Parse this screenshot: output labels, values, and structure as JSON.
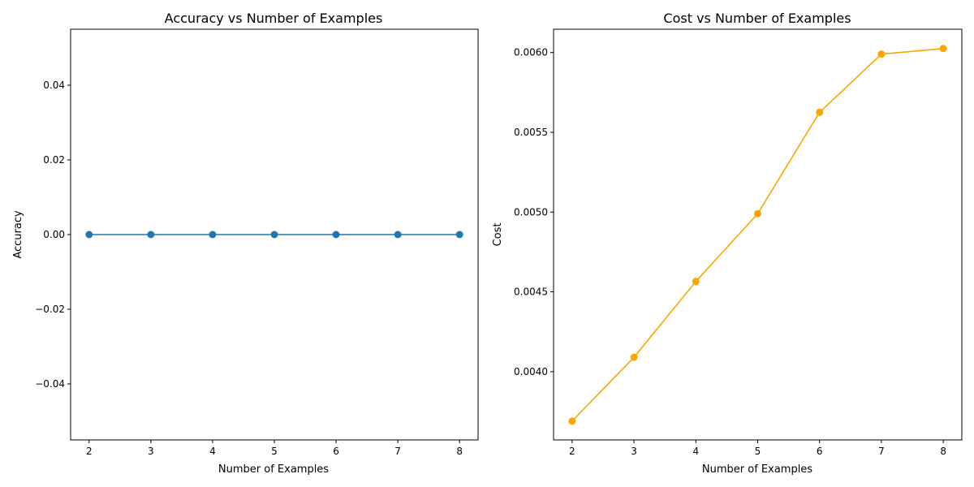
{
  "chart_data": [
    {
      "type": "line",
      "title": "Accuracy vs Number of Examples",
      "xlabel": "Number of Examples",
      "ylabel": "Accuracy",
      "x": [
        2,
        3,
        4,
        5,
        6,
        7,
        8
      ],
      "xlim": [
        1.7,
        8.3
      ],
      "ylim": [
        -0.055,
        0.055
      ],
      "xticks": [
        2,
        3,
        4,
        5,
        6,
        7,
        8
      ],
      "xtick_labels": [
        "2",
        "3",
        "4",
        "5",
        "6",
        "7",
        "8"
      ],
      "yticks": [
        -0.04,
        -0.02,
        0.0,
        0.02,
        0.04
      ],
      "ytick_labels": [
        "−0.04",
        "−0.02",
        "0.00",
        "0.02",
        "0.04"
      ],
      "grid": false,
      "series": [
        {
          "values": [
            0,
            0,
            0,
            0,
            0,
            0,
            0
          ],
          "color": "#1f77b4",
          "marker": "circle"
        }
      ]
    },
    {
      "type": "line",
      "title": "Cost vs Number of Examples",
      "xlabel": "Number of Examples",
      "ylabel": "Cost",
      "x": [
        2,
        3,
        4,
        5,
        6,
        7,
        8
      ],
      "xlim": [
        1.7,
        8.3
      ],
      "ylim": [
        0.003572,
        0.006146
      ],
      "xticks": [
        2,
        3,
        4,
        5,
        6,
        7,
        8
      ],
      "xtick_labels": [
        "2",
        "3",
        "4",
        "5",
        "6",
        "7",
        "8"
      ],
      "yticks": [
        0.004,
        0.0045,
        0.005,
        0.0055,
        0.006
      ],
      "ytick_labels": [
        "0.0040",
        "0.0045",
        "0.0050",
        "0.0055",
        "0.0060"
      ],
      "grid": false,
      "series": [
        {
          "values": [
            0.00369,
            0.00409,
            0.004565,
            0.00499,
            0.005625,
            0.00599,
            0.006025
          ],
          "color": "#ffa500",
          "marker": "circle"
        }
      ]
    }
  ]
}
